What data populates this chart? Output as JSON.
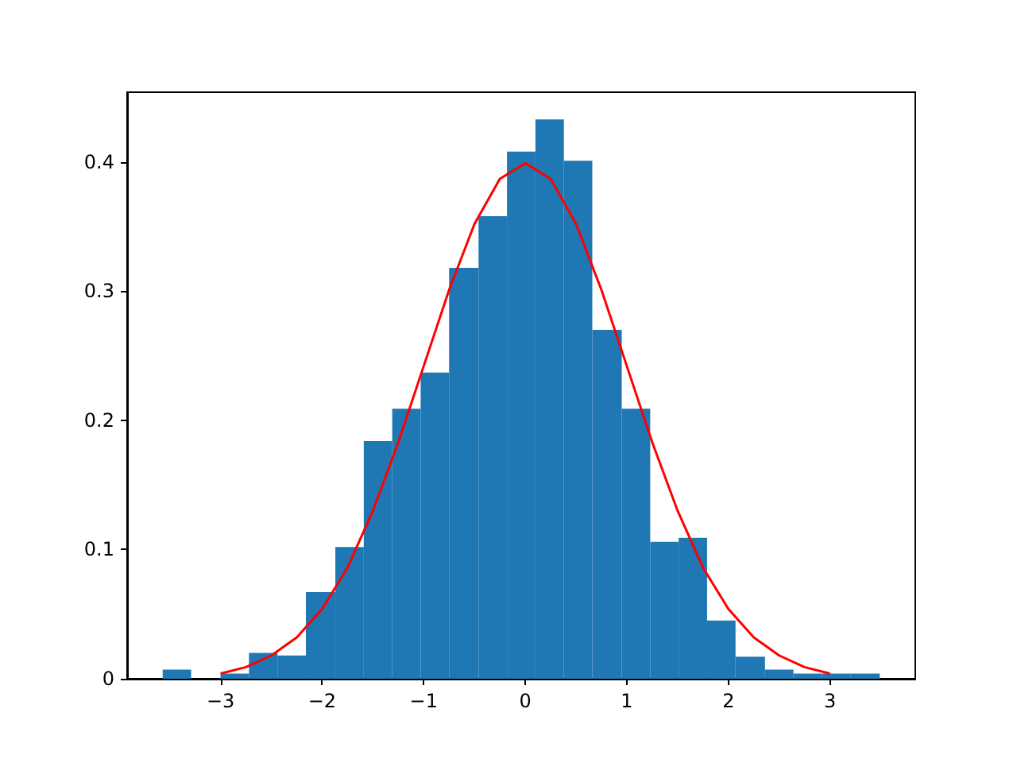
{
  "chart_data": {
    "type": "histogram",
    "bins": [
      -3.57,
      -3.29,
      -3.0,
      -2.72,
      -2.44,
      -2.16,
      -1.87,
      -1.59,
      -1.31,
      -1.03,
      -0.75,
      -0.46,
      -0.18,
      0.1,
      0.38,
      0.66,
      0.95,
      1.23,
      1.51,
      1.79,
      2.07,
      2.36,
      2.64,
      2.92,
      3.2,
      3.49
    ],
    "values": [
      0.007,
      0,
      0.004,
      0.02,
      0.018,
      0.067,
      0.102,
      0.184,
      0.209,
      0.237,
      0.318,
      0.358,
      0.408,
      0.433,
      0.401,
      0.27,
      0.209,
      0.106,
      0.109,
      0.045,
      0.017,
      0.007,
      0.004,
      0.004,
      0.004
    ],
    "color": "#1f77b4",
    "series": [
      {
        "type": "line",
        "color": "#ff0000",
        "x": [
          -3,
          -2.75,
          -2.5,
          -2.25,
          -2,
          -1.75,
          -1.5,
          -1.25,
          -1,
          -0.75,
          -0.5,
          -0.25,
          0,
          0.25,
          0.5,
          0.75,
          1,
          1.25,
          1.5,
          1.75,
          2,
          2.25,
          2.5,
          2.75,
          3
        ],
        "values": [
          0.004,
          0.009,
          0.018,
          0.032,
          0.054,
          0.086,
          0.13,
          0.183,
          0.242,
          0.301,
          0.352,
          0.387,
          0.399,
          0.387,
          0.352,
          0.301,
          0.242,
          0.183,
          0.13,
          0.086,
          0.054,
          0.032,
          0.018,
          0.009,
          0.004
        ]
      }
    ],
    "xlim": [
      -3.92,
      3.84
    ],
    "ylim": [
      0,
      0.454
    ],
    "xticks": [
      -3,
      -2,
      -1,
      0,
      1,
      2,
      3
    ],
    "yticks": [
      0,
      0.1,
      0.2,
      0.3,
      0.4
    ],
    "grid": false
  }
}
